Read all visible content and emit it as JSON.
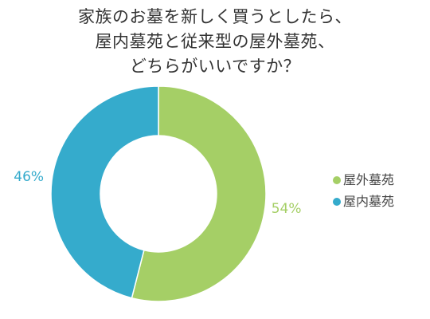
{
  "title_lines": [
    "家族のお墓を新しく買うとしたら、",
    "屋内墓苑と従来型の屋外墓苑、",
    "どちらがいいですか？"
  ],
  "colors": {
    "outdoor": "#a5cf66",
    "indoor": "#35abcc"
  },
  "chart_data": {
    "type": "pie",
    "title": "家族のお墓を新しく買うとしたら、屋内墓苑と従来型の屋外墓苑、どちらがいいですか？",
    "donut": true,
    "slices": [
      {
        "label": "屋外墓苑",
        "value": 54,
        "display": "54%",
        "color": "#a5cf66"
      },
      {
        "label": "屋内墓苑",
        "value": 46,
        "display": "46%",
        "color": "#35abcc"
      }
    ],
    "legend": {
      "position": "right",
      "items": [
        "屋外墓苑",
        "屋内墓苑"
      ]
    }
  }
}
